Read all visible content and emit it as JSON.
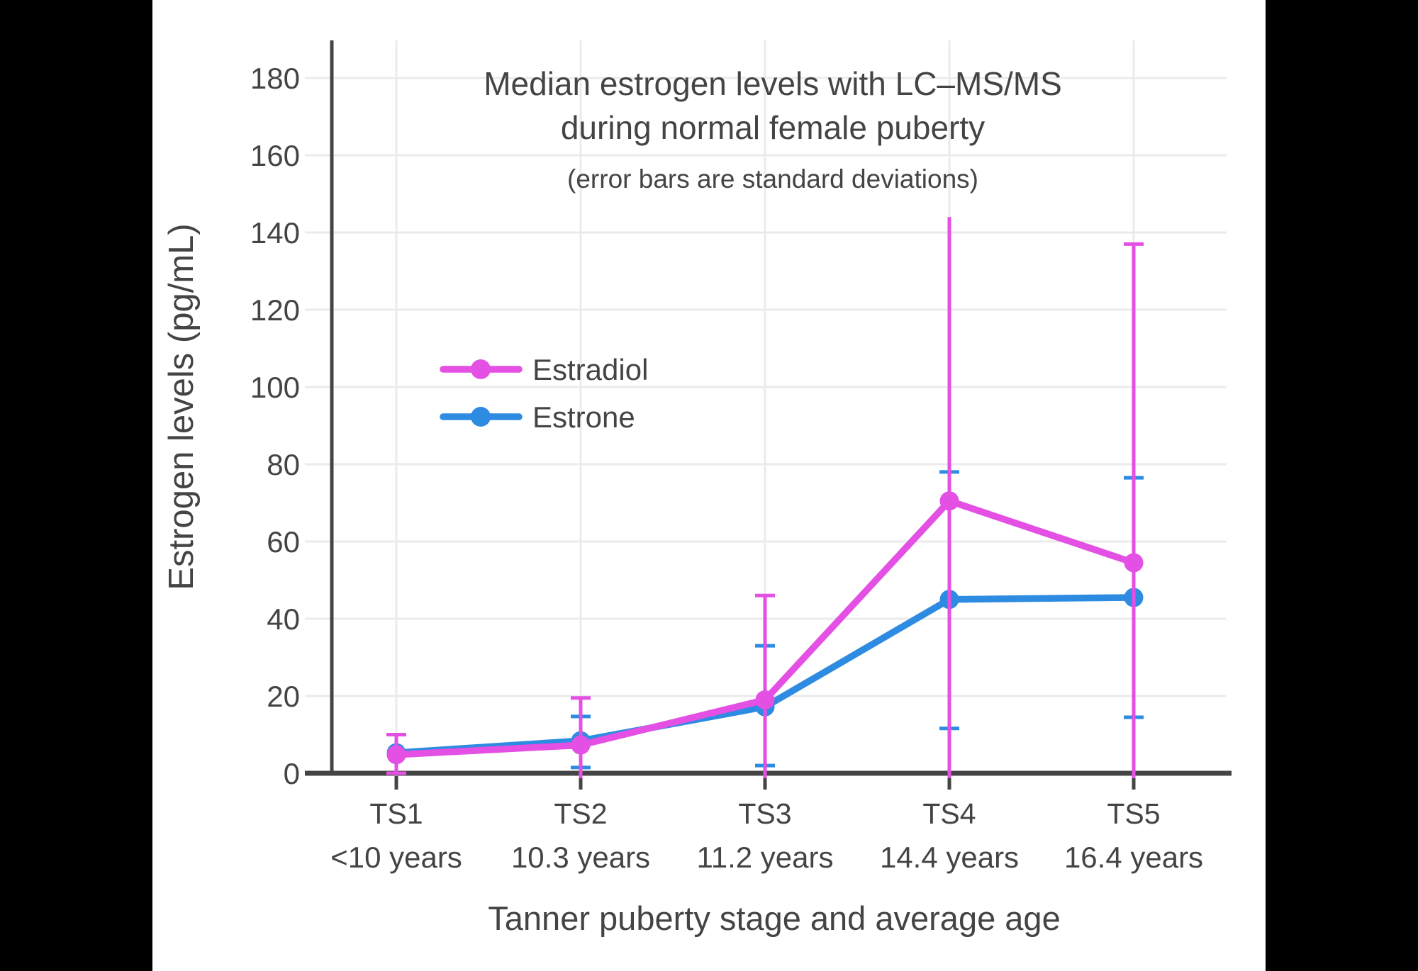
{
  "frame": {
    "background_color": "#000000",
    "canvas_color": "#ffffff"
  },
  "chart_data": {
    "type": "line",
    "title": "Median estrogen levels with LC–MS/MS during normal female puberty",
    "title_lines": [
      "Median estrogen levels with LC–MS/MS",
      "during normal female puberty"
    ],
    "subtitle": "(error bars are standard deviations)",
    "xlabel": "Tanner puberty stage and average age",
    "ylabel": "Estrogen levels (pg/mL)",
    "categories": [
      "TS1",
      "TS2",
      "TS3",
      "TS4",
      "TS5"
    ],
    "category_ages": [
      "<10 years",
      "10.3 years",
      "11.2 years",
      "14.4 years",
      "16.4 years"
    ],
    "yticks": [
      0,
      20,
      40,
      60,
      80,
      100,
      120,
      140,
      160,
      180
    ],
    "ylim": [
      0,
      190
    ],
    "grid": true,
    "colors": {
      "text": "#444444",
      "gridline": "#ebebeb",
      "axis": "#444444"
    },
    "legend": {
      "position": "inside-left-middle",
      "order": [
        "Estradiol",
        "Estrone"
      ]
    },
    "series": [
      {
        "name": "Estrone",
        "color": "#2d8be2",
        "values": [
          5.3,
          8.4,
          17.2,
          45,
          45.5
        ],
        "error_low": [
          null,
          1.5,
          2,
          11.6,
          14.5
        ],
        "error_high": [
          null,
          14.7,
          33,
          78,
          76.5
        ],
        "cap_low": [
          false,
          true,
          true,
          true,
          true
        ],
        "cap_high": [
          false,
          true,
          true,
          true,
          true
        ]
      },
      {
        "name": "Estradiol",
        "color": "#e44fe4",
        "values": [
          4.8,
          7.3,
          19,
          70.5,
          54.5
        ],
        "error_low": [
          0,
          -4.7,
          -8,
          -3.5,
          -29
        ],
        "error_high": [
          10,
          19.5,
          46,
          144,
          137
        ],
        "cap_low": [
          true,
          true,
          true,
          true,
          true
        ],
        "cap_high": [
          true,
          true,
          true,
          false,
          true
        ]
      }
    ]
  }
}
